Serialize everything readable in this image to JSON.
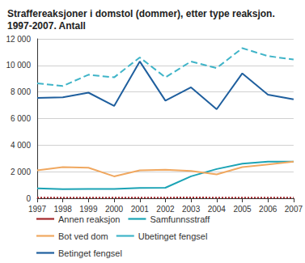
{
  "chart_data": {
    "type": "line",
    "title": "Straffereaksjoner i domstol (dommer), etter type reaksjon. 1997-2007. Antall",
    "categories": [
      "1997",
      "1998",
      "1999",
      "2000",
      "2001",
      "2002",
      "2003",
      "2004",
      "2005",
      "2006",
      "2007"
    ],
    "series": [
      {
        "name": "Annen reaksjon",
        "color": "#a3272b",
        "line_style": "dotted",
        "values": [
          50,
          50,
          50,
          50,
          50,
          50,
          60,
          50,
          50,
          50,
          50
        ]
      },
      {
        "name": "Samfunnsstraff",
        "color": "#1ba3b5",
        "line_style": "solid",
        "values": [
          750,
          680,
          700,
          700,
          780,
          790,
          1650,
          2200,
          2600,
          2750,
          2750
        ]
      },
      {
        "name": "Bot ved dom",
        "color": "#f0a860",
        "line_style": "solid",
        "values": [
          2100,
          2350,
          2300,
          1650,
          2100,
          2150,
          2050,
          1800,
          2350,
          2550,
          2750
        ]
      },
      {
        "name": "Ubetinget fengsel",
        "color": "#3fb4c8",
        "line_style": "dashed",
        "values": [
          8650,
          8450,
          9300,
          9100,
          10600,
          9100,
          10300,
          9800,
          11300,
          10700,
          10450
        ]
      },
      {
        "name": "Betinget fengsel",
        "color": "#1f5f9e",
        "line_style": "solid",
        "values": [
          7550,
          7600,
          7950,
          6950,
          10300,
          7350,
          8350,
          6700,
          9400,
          7800,
          7450
        ]
      }
    ],
    "ylim": [
      0,
      12000
    ],
    "yticks": [
      0,
      {
        "value": 2000,
        "label": "2 000"
      },
      {
        "value": 4000,
        "label": "4 000"
      },
      {
        "value": 6000,
        "label": "6 000"
      },
      {
        "value": 8000,
        "label": "8 000"
      },
      {
        "value": 10000,
        "label": "10 000"
      },
      {
        "value": 12000,
        "label": "12 000"
      }
    ],
    "grid": true,
    "legend": "bottom",
    "marker": "none"
  }
}
